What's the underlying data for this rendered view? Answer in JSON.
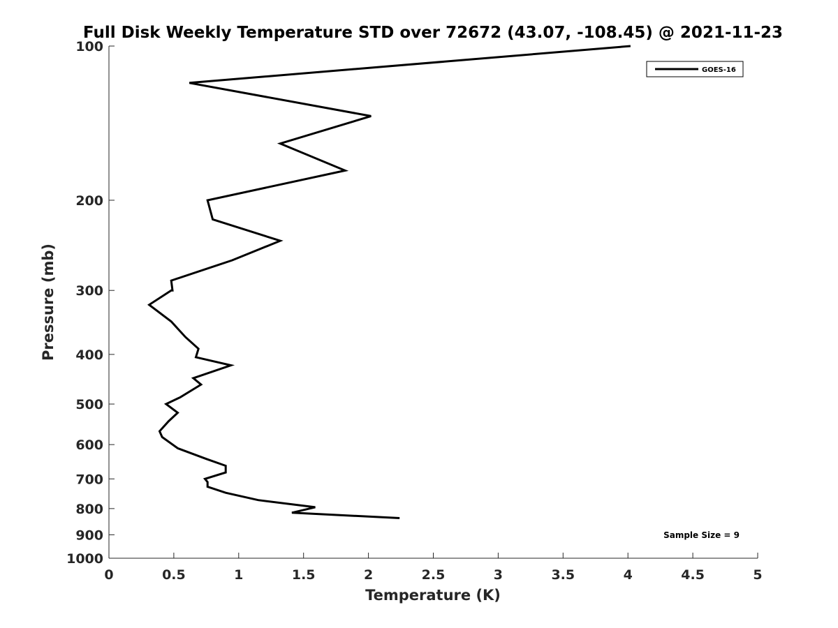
{
  "chart_data": {
    "type": "line",
    "title": "Full Disk Weekly Temperature STD over 72672 (43.07, -108.45) @ 2021-11-23",
    "xlabel": "Temperature (K)",
    "ylabel": "Pressure (mb)",
    "xlim": [
      0,
      5
    ],
    "ylim": [
      1000,
      100
    ],
    "y_scale": "log",
    "y_reversed": true,
    "x_ticks": [
      0,
      0.5,
      1,
      1.5,
      2,
      2.5,
      3,
      3.5,
      4,
      4.5,
      5
    ],
    "x_tick_labels": [
      "0",
      "0.5",
      "1",
      "1.5",
      "2",
      "2.5",
      "3",
      "3.5",
      "4",
      "4.5",
      "5"
    ],
    "y_ticks": [
      100,
      200,
      300,
      400,
      500,
      600,
      700,
      800,
      900,
      1000
    ],
    "y_tick_labels": [
      "100",
      "200",
      "300",
      "400",
      "500",
      "600",
      "700",
      "800",
      "900",
      "1000"
    ],
    "grid": false,
    "legend_position": "top-right",
    "annotation": "Sample Size = 9",
    "series": [
      {
        "name": "GOES-16",
        "color": "#000000",
        "x": [
          4.02,
          0.62,
          2.02,
          1.32,
          1.82,
          0.76,
          0.8,
          1.32,
          0.95,
          0.48,
          0.49,
          0.48,
          0.31,
          0.48,
          0.59,
          0.69,
          0.67,
          0.94,
          0.65,
          0.71,
          0.55,
          0.44,
          0.53,
          0.46,
          0.39,
          0.41,
          0.53,
          0.75,
          0.9,
          0.9,
          0.74,
          0.76,
          0.76,
          0.9,
          1.15,
          1.59,
          1.41,
          2.24
        ],
        "y": [
          100,
          118,
          137,
          155,
          175,
          200,
          218,
          240,
          262,
          287,
          300,
          300,
          320,
          345,
          370,
          390,
          405,
          420,
          445,
          458,
          485,
          500,
          520,
          540,
          565,
          580,
          610,
          640,
          660,
          680,
          700,
          710,
          725,
          745,
          770,
          795,
          815,
          835
        ]
      }
    ]
  }
}
